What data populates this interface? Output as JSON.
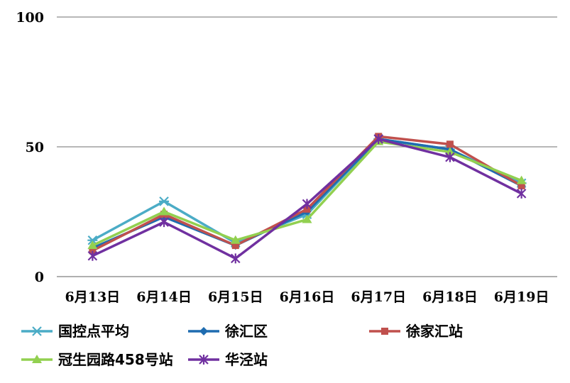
{
  "chart_data": {
    "type": "line",
    "title": "",
    "xlabel": "",
    "ylabel": "",
    "categories": [
      "6月13日",
      "6月14日",
      "6月15日",
      "6月16日",
      "6月17日",
      "6月18日",
      "6月19日"
    ],
    "ylim": [
      0,
      100
    ],
    "yticks": [
      "0",
      "50",
      "100"
    ],
    "grid": true,
    "legend_position": "bottom",
    "series": [
      {
        "name": "国控点平均",
        "color": "#4bacc6",
        "marker": "asterisk",
        "values": [
          14,
          29,
          13,
          24,
          53,
          49,
          36
        ]
      },
      {
        "name": "徐汇区",
        "color": "#1f6cb0",
        "marker": "diamond",
        "values": [
          11,
          23,
          12,
          25,
          53,
          49,
          35
        ]
      },
      {
        "name": "徐家汇站",
        "color": "#c0504d",
        "marker": "square",
        "values": [
          10,
          24,
          12,
          26,
          54,
          51,
          35
        ]
      },
      {
        "name": "冠生园路458号站",
        "color": "#92d050",
        "marker": "triangle",
        "values": [
          12,
          25,
          14,
          22,
          52,
          48,
          37
        ]
      },
      {
        "name": "华泾站",
        "color": "#7030a0",
        "marker": "star",
        "values": [
          8,
          21,
          7,
          28,
          53,
          46,
          32
        ]
      }
    ]
  }
}
